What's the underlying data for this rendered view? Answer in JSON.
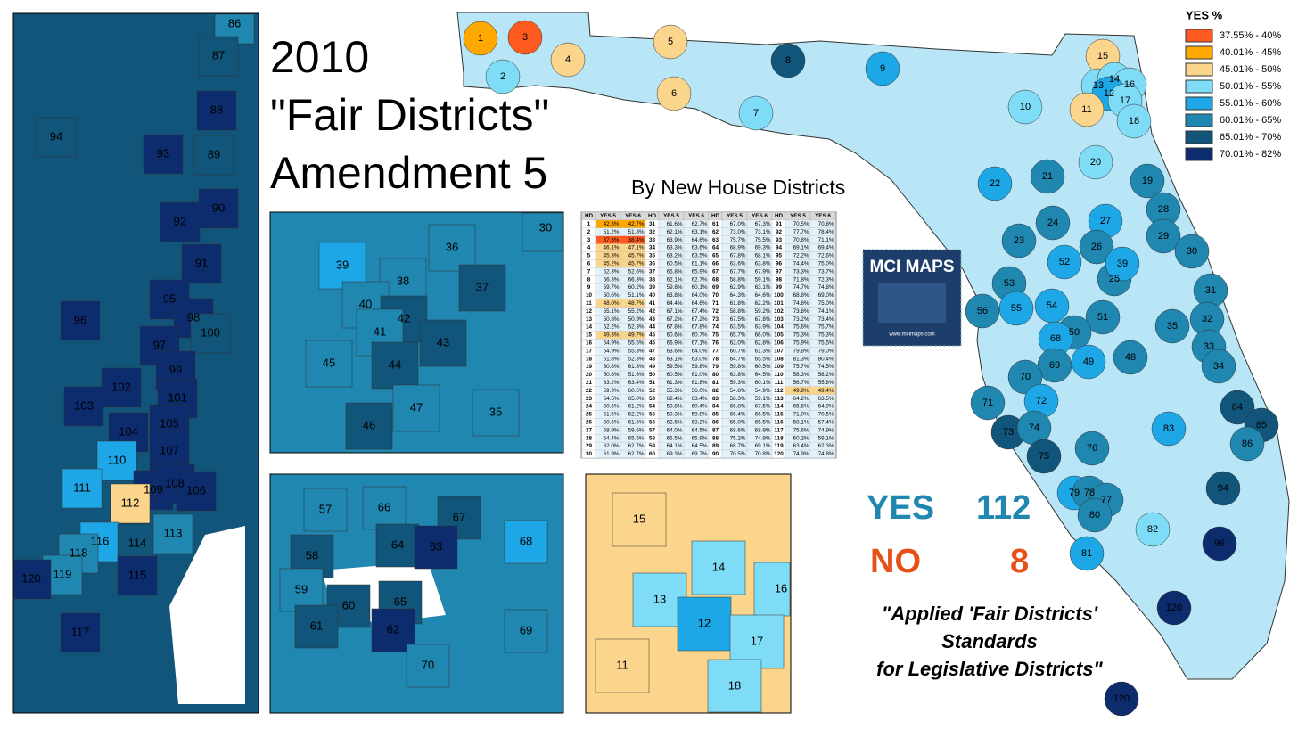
{
  "title": {
    "line1": "2010",
    "line2": "\"Fair Districts\"",
    "line3": "Amendment 5",
    "subtitle": "By New House Districts"
  },
  "legend": {
    "header": "YES  %",
    "items": [
      {
        "label": "37.55% - 40%",
        "color": "#ff5a1f"
      },
      {
        "label": "40.01% - 45%",
        "color": "#ffa800"
      },
      {
        "label": "45.01% - 50%",
        "color": "#fbd58b"
      },
      {
        "label": "50.01% - 55%",
        "color": "#7fdcf7"
      },
      {
        "label": "55.01% - 60%",
        "color": "#1ea7e6"
      },
      {
        "label": "60.01% - 65%",
        "color": "#1f87b0"
      },
      {
        "label": "65.01% - 70%",
        "color": "#12557a"
      },
      {
        "label": "70.01% - 82%",
        "color": "#0c2c6e"
      }
    ]
  },
  "table": {
    "columns": [
      "HD",
      "YES 5",
      "YES 6"
    ],
    "rows": [
      [
        "1",
        "42.3%",
        "42.7%"
      ],
      [
        "2",
        "51.2%",
        "51.8%"
      ],
      [
        "3",
        "37.6%",
        "38.4%"
      ],
      [
        "4",
        "46.1%",
        "47.1%"
      ],
      [
        "5",
        "45.3%",
        "45.7%"
      ],
      [
        "6",
        "45.2%",
        "45.7%"
      ],
      [
        "7",
        "52.3%",
        "52.6%"
      ],
      [
        "8",
        "66.3%",
        "66.3%"
      ],
      [
        "9",
        "59.7%",
        "60.2%"
      ],
      [
        "10",
        "50.6%",
        "51.1%"
      ],
      [
        "11",
        "48.0%",
        "48.7%"
      ],
      [
        "12",
        "55.1%",
        "55.2%"
      ],
      [
        "13",
        "50.8%",
        "50.9%"
      ],
      [
        "14",
        "52.2%",
        "52.3%"
      ],
      [
        "15",
        "49.3%",
        "49.7%"
      ],
      [
        "16",
        "54.9%",
        "55.5%"
      ],
      [
        "17",
        "54.9%",
        "55.3%"
      ],
      [
        "18",
        "51.8%",
        "52.3%"
      ],
      [
        "19",
        "60.8%",
        "61.3%"
      ],
      [
        "20",
        "50.8%",
        "51.6%"
      ],
      [
        "21",
        "63.2%",
        "63.4%"
      ],
      [
        "22",
        "59.9%",
        "60.5%"
      ],
      [
        "23",
        "64.5%",
        "65.0%"
      ],
      [
        "24",
        "60.6%",
        "61.2%"
      ],
      [
        "25",
        "61.5%",
        "62.2%"
      ],
      [
        "26",
        "60.6%",
        "61.6%"
      ],
      [
        "27",
        "58.9%",
        "59.6%"
      ],
      [
        "28",
        "64.4%",
        "65.5%"
      ],
      [
        "29",
        "62.0%",
        "62.7%"
      ],
      [
        "30",
        "61.9%",
        "62.7%"
      ],
      [
        "31",
        "61.6%",
        "62.7%"
      ],
      [
        "32",
        "62.1%",
        "63.1%"
      ],
      [
        "33",
        "63.9%",
        "64.6%"
      ],
      [
        "34",
        "63.3%",
        "63.6%"
      ],
      [
        "35",
        "63.2%",
        "63.5%"
      ],
      [
        "36",
        "60.5%",
        "61.1%"
      ],
      [
        "37",
        "65.8%",
        "65.9%"
      ],
      [
        "38",
        "62.1%",
        "62.7%"
      ],
      [
        "39",
        "59.8%",
        "60.1%"
      ],
      [
        "40",
        "63.8%",
        "64.0%"
      ],
      [
        "41",
        "64.4%",
        "64.6%"
      ],
      [
        "42",
        "67.1%",
        "67.4%"
      ],
      [
        "43",
        "67.2%",
        "67.2%"
      ],
      [
        "44",
        "67.8%",
        "67.8%"
      ],
      [
        "45",
        "60.6%",
        "60.7%"
      ],
      [
        "46",
        "66.9%",
        "67.1%"
      ],
      [
        "47",
        "63.6%",
        "64.0%"
      ],
      [
        "48",
        "63.1%",
        "63.0%"
      ],
      [
        "49",
        "59.5%",
        "59.8%"
      ],
      [
        "50",
        "60.5%",
        "61.0%"
      ],
      [
        "51",
        "61.3%",
        "61.8%"
      ],
      [
        "52",
        "55.3%",
        "56.0%"
      ],
      [
        "53",
        "62.4%",
        "63.4%"
      ],
      [
        "54",
        "59.8%",
        "60.4%"
      ],
      [
        "55",
        "59.3%",
        "59.8%"
      ],
      [
        "56",
        "62.6%",
        "63.2%"
      ],
      [
        "57",
        "64.0%",
        "64.5%"
      ],
      [
        "58",
        "65.5%",
        "65.9%"
      ],
      [
        "59",
        "64.1%",
        "64.5%"
      ],
      [
        "60",
        "69.3%",
        "69.7%"
      ],
      [
        "61",
        "67.0%",
        "67.3%"
      ],
      [
        "62",
        "73.0%",
        "73.1%"
      ],
      [
        "63",
        "75.7%",
        "75.5%"
      ],
      [
        "64",
        "68.9%",
        "69.3%"
      ],
      [
        "65",
        "67.8%",
        "68.1%"
      ],
      [
        "66",
        "63.6%",
        "63.8%"
      ],
      [
        "67",
        "67.7%",
        "67.9%"
      ],
      [
        "68",
        "58.8%",
        "59.1%"
      ],
      [
        "69",
        "62.9%",
        "63.1%"
      ],
      [
        "70",
        "64.3%",
        "64.6%"
      ],
      [
        "71",
        "61.8%",
        "62.2%"
      ],
      [
        "72",
        "58.8%",
        "59.2%"
      ],
      [
        "73",
        "67.5%",
        "67.8%"
      ],
      [
        "74",
        "63.5%",
        "63.9%"
      ],
      [
        "75",
        "65.7%",
        "66.0%"
      ],
      [
        "76",
        "62.0%",
        "62.8%"
      ],
      [
        "77",
        "60.7%",
        "61.3%"
      ],
      [
        "78",
        "64.7%",
        "65.5%"
      ],
      [
        "79",
        "59.8%",
        "60.5%"
      ],
      [
        "80",
        "63.8%",
        "64.5%"
      ],
      [
        "81",
        "59.3%",
        "60.1%"
      ],
      [
        "82",
        "54.8%",
        "54.9%"
      ],
      [
        "83",
        "58.3%",
        "59.1%"
      ],
      [
        "84",
        "66.8%",
        "67.5%"
      ],
      [
        "85",
        "66.4%",
        "66.5%"
      ],
      [
        "86",
        "65.0%",
        "65.5%"
      ],
      [
        "87",
        "68.6%",
        "68.9%"
      ],
      [
        "88",
        "75.2%",
        "74.9%"
      ],
      [
        "89",
        "68.7%",
        "69.1%"
      ],
      [
        "90",
        "70.5%",
        "70.8%"
      ],
      [
        "91",
        "70.5%",
        "70.8%"
      ],
      [
        "92",
        "77.7%",
        "78.4%"
      ],
      [
        "93",
        "70.8%",
        "71.1%"
      ],
      [
        "94",
        "69.1%",
        "69.4%"
      ],
      [
        "95",
        "72.2%",
        "72.6%"
      ],
      [
        "96",
        "74.4%",
        "75.0%"
      ],
      [
        "97",
        "73.3%",
        "73.7%"
      ],
      [
        "98",
        "71.8%",
        "72.3%"
      ],
      [
        "99",
        "74.7%",
        "74.8%"
      ],
      [
        "100",
        "68.8%",
        "69.0%"
      ],
      [
        "101",
        "74.8%",
        "75.0%"
      ],
      [
        "102",
        "73.8%",
        "74.1%"
      ],
      [
        "103",
        "73.2%",
        "73.4%"
      ],
      [
        "104",
        "75.6%",
        "75.7%"
      ],
      [
        "105",
        "75.3%",
        "75.3%"
      ],
      [
        "106",
        "75.9%",
        "75.5%"
      ],
      [
        "107",
        "79.8%",
        "79.0%"
      ],
      [
        "108",
        "81.3%",
        "80.4%"
      ],
      [
        "109",
        "75.7%",
        "74.5%"
      ],
      [
        "110",
        "58.3%",
        "58.2%"
      ],
      [
        "111",
        "56.7%",
        "55.8%"
      ],
      [
        "112",
        "49.9%",
        "49.4%"
      ],
      [
        "113",
        "64.2%",
        "63.5%"
      ],
      [
        "114",
        "65.6%",
        "64.9%"
      ],
      [
        "115",
        "71.0%",
        "70.5%"
      ],
      [
        "116",
        "58.1%",
        "57.4%"
      ],
      [
        "117",
        "75.6%",
        "74.9%"
      ],
      [
        "118",
        "60.2%",
        "59.1%"
      ],
      [
        "119",
        "63.4%",
        "62.3%"
      ],
      [
        "120",
        "74.9%",
        "74.8%"
      ]
    ]
  },
  "logo": {
    "title": "MCI MAPS",
    "url": "www.mcimaps.com"
  },
  "tally": {
    "yes_label": "YES",
    "yes_count": "112",
    "no_label": "NO",
    "no_count": "8"
  },
  "quote": [
    "\"Applied 'Fair Districts'",
    "Standards",
    "for Legislative Districts\""
  ],
  "maps": {
    "main": [
      "1",
      "3",
      "2",
      "4",
      "5",
      "6",
      "8",
      "9",
      "7",
      "10",
      "15",
      "13",
      "14",
      "16",
      "12",
      "17",
      "11",
      "18",
      "20",
      "19",
      "22",
      "21",
      "28",
      "24",
      "27",
      "29",
      "23",
      "26",
      "30",
      "52",
      "25",
      "39",
      "53",
      "31",
      "56",
      "55",
      "54",
      "51",
      "32",
      "35",
      "50",
      "68",
      "33",
      "48",
      "49",
      "69",
      "34",
      "70",
      "71",
      "72",
      "73",
      "74",
      "84",
      "85",
      "83",
      "86",
      "76",
      "75",
      "94",
      "79",
      "78",
      "77",
      "80",
      "82",
      "96",
      "81",
      "120",
      "120"
    ],
    "miami": [
      "86",
      "87",
      "88",
      "94",
      "93",
      "89",
      "92",
      "90",
      "91",
      "95",
      "98",
      "96",
      "100",
      "97",
      "99",
      "102",
      "101",
      "103",
      "105",
      "104",
      "107",
      "110",
      "109",
      "108",
      "106",
      "111",
      "112",
      "116",
      "118",
      "114",
      "113",
      "119",
      "115",
      "120",
      "117"
    ],
    "tampa": [
      "30",
      "36",
      "39",
      "38",
      "37",
      "40",
      "42",
      "41",
      "43",
      "45",
      "44",
      "47",
      "35",
      "46"
    ],
    "pinellas": [
      "57",
      "66",
      "67",
      "68",
      "58",
      "64",
      "63",
      "59",
      "60",
      "65",
      "61",
      "62",
      "69",
      "70"
    ],
    "jax": [
      "15",
      "14",
      "16",
      "13",
      "12",
      "17",
      "11",
      "18"
    ]
  }
}
